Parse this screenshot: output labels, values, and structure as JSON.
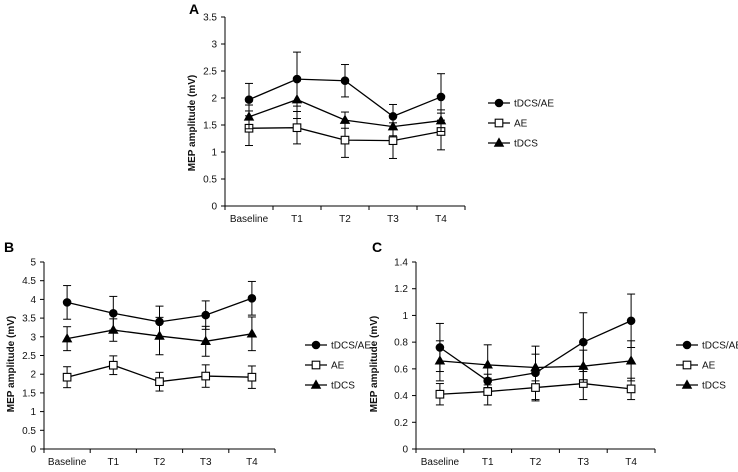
{
  "figure": {
    "series_names": [
      "tDCS/AE",
      "AE",
      "tDCS"
    ],
    "series_markers": [
      "filled-circle",
      "open-square",
      "filled-triangle"
    ],
    "colors": {
      "line": "#000000",
      "axis": "#000000",
      "background": "#ffffff"
    }
  },
  "chart_data": [
    {
      "panel": "A",
      "type": "line",
      "categories": [
        "Baseline",
        "T1",
        "T2",
        "T3",
        "T4"
      ],
      "ylabel": "MEP amplitude (mV)",
      "ylim": [
        0,
        3.5
      ],
      "yticks": [
        0,
        0.5,
        1,
        1.5,
        2,
        2.5,
        3,
        3.5
      ],
      "ytick_labels": [
        "0",
        "0.5",
        "1",
        "1.5",
        "2",
        "2.5",
        "3",
        "3.5"
      ],
      "legend": "right",
      "series": [
        {
          "name": "tDCS/AE",
          "marker": "filled-circle",
          "values": [
            1.97,
            2.35,
            2.32,
            1.66,
            2.02
          ],
          "errors": [
            0.3,
            0.5,
            0.3,
            0.22,
            0.43
          ]
        },
        {
          "name": "AE",
          "marker": "open-square",
          "values": [
            1.44,
            1.45,
            1.22,
            1.21,
            1.38
          ],
          "errors": [
            0.32,
            0.3,
            0.32,
            0.33,
            0.34
          ]
        },
        {
          "name": "tDCS",
          "marker": "filled-triangle",
          "values": [
            1.65,
            1.97,
            1.59,
            1.47,
            1.58
          ],
          "errors": [
            0.22,
            0.35,
            0.15,
            0.17,
            0.2
          ]
        }
      ]
    },
    {
      "panel": "B",
      "type": "line",
      "categories": [
        "Baseline",
        "T1",
        "T2",
        "T3",
        "T4"
      ],
      "ylabel": "MEP amplitude (mV)",
      "ylim": [
        0,
        5
      ],
      "yticks": [
        0,
        0.5,
        1,
        1.5,
        2,
        2.5,
        3,
        3.5,
        4,
        4.5,
        5
      ],
      "ytick_labels": [
        "0",
        "0.5",
        "1",
        "1.5",
        "2",
        "2.5",
        "3",
        "3.5",
        "4",
        "4.5",
        "5"
      ],
      "legend": "right",
      "series": [
        {
          "name": "tDCS/AE",
          "marker": "filled-circle",
          "values": [
            3.92,
            3.63,
            3.4,
            3.58,
            4.03
          ],
          "errors": [
            0.45,
            0.45,
            0.42,
            0.38,
            0.45
          ]
        },
        {
          "name": "AE",
          "marker": "open-square",
          "values": [
            1.92,
            2.24,
            1.8,
            1.95,
            1.92
          ],
          "errors": [
            0.28,
            0.25,
            0.25,
            0.3,
            0.3
          ]
        },
        {
          "name": "tDCS",
          "marker": "filled-triangle",
          "values": [
            2.95,
            3.18,
            3.02,
            2.88,
            3.08
          ],
          "errors": [
            0.32,
            0.3,
            0.5,
            0.4,
            0.45
          ]
        }
      ]
    },
    {
      "panel": "C",
      "type": "line",
      "categories": [
        "Baseline",
        "T1",
        "T2",
        "T3",
        "T4"
      ],
      "ylabel": "MEP amplitude (mV)",
      "ylim": [
        0,
        1.4
      ],
      "yticks": [
        0,
        0.2,
        0.4,
        0.6,
        0.8,
        1,
        1.2,
        1.4
      ],
      "ytick_labels": [
        "0",
        "0.2",
        "0.4",
        "0.6",
        "0.8",
        "1",
        "1.2",
        "1.4"
      ],
      "legend": "right",
      "series": [
        {
          "name": "tDCS/AE",
          "marker": "filled-circle",
          "values": [
            0.76,
            0.51,
            0.57,
            0.8,
            0.96
          ],
          "errors": [
            0.18,
            0.05,
            0.2,
            0.22,
            0.2
          ]
        },
        {
          "name": "AE",
          "marker": "open-square",
          "values": [
            0.41,
            0.43,
            0.46,
            0.49,
            0.45
          ],
          "errors": [
            0.08,
            0.1,
            0.1,
            0.12,
            0.08
          ]
        },
        {
          "name": "tDCS",
          "marker": "filled-triangle",
          "values": [
            0.66,
            0.63,
            0.61,
            0.62,
            0.66
          ],
          "errors": [
            0.15,
            0.15,
            0.1,
            0.12,
            0.15
          ]
        }
      ]
    }
  ]
}
